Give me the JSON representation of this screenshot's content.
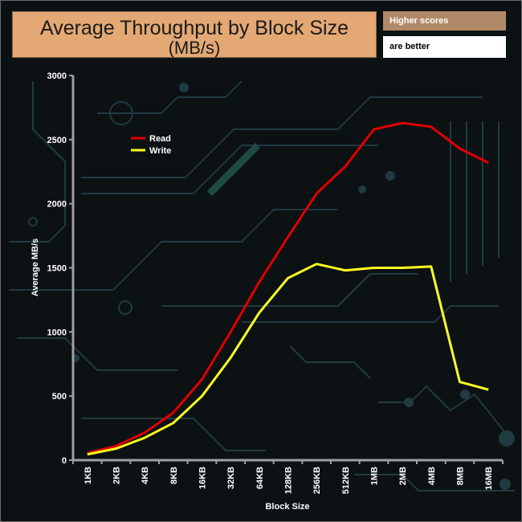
{
  "header": {
    "title_line1": "Average Throughput by Block Size",
    "title_line2": "(MB/s)",
    "note_line1": "Higher scores",
    "note_line2": "are better"
  },
  "colors": {
    "title_bg": "#e3a874",
    "note_bg": "#b08a68",
    "read": "#e00000",
    "write": "#ffff20",
    "background": "#0c1114",
    "circuit": "#1f3b40"
  },
  "chart_data": {
    "type": "line",
    "title": "Average Throughput by Block Size (MB/s)",
    "xlabel": "Block Size",
    "ylabel": "Average MB/s",
    "ylim": [
      0,
      3000
    ],
    "yticks": [
      0,
      500,
      1000,
      1500,
      2000,
      2500,
      3000
    ],
    "grid": false,
    "legend_position": "top-left",
    "categories": [
      "1KB",
      "2KB",
      "4KB",
      "8KB",
      "16KB",
      "32KB",
      "64KB",
      "128KB",
      "256KB",
      "512KB",
      "1MB",
      "2MB",
      "4MB",
      "8MB",
      "16MB"
    ],
    "series": [
      {
        "name": "Read",
        "color": "#e00000",
        "values": [
          55,
          110,
          215,
          370,
          630,
          1000,
          1390,
          1740,
          2080,
          2290,
          2580,
          2630,
          2600,
          2430,
          2320
        ]
      },
      {
        "name": "Write",
        "color": "#ffff20",
        "values": [
          45,
          90,
          175,
          290,
          500,
          800,
          1150,
          1420,
          1530,
          1480,
          1500,
          1500,
          1510,
          610,
          550
        ]
      }
    ]
  }
}
